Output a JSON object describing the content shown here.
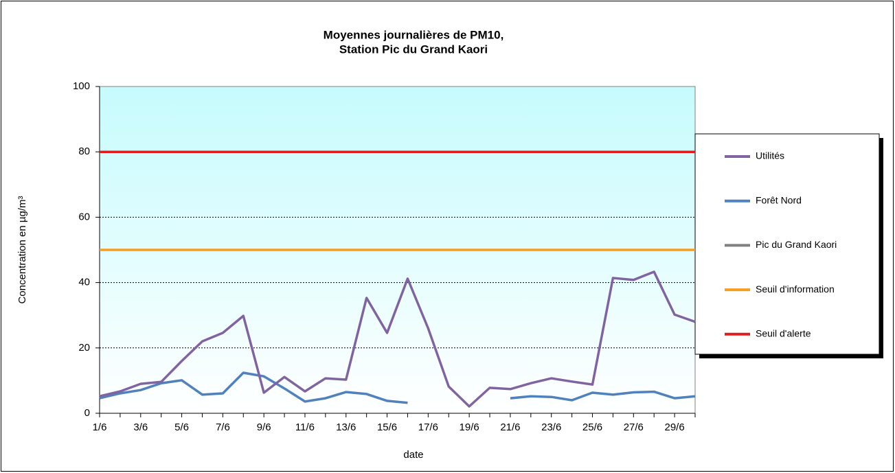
{
  "chart_data": {
    "type": "line",
    "title": "Moyennes journalières de PM10,",
    "subtitle": "Station Pic du Grand Kaori",
    "x_label": "date",
    "y_label": "Concentration en µg/m³",
    "categories": [
      "1/6",
      null,
      "3/6",
      null,
      "5/6",
      null,
      "7/6",
      null,
      "9/6",
      null,
      "11/6",
      null,
      "13/6",
      null,
      "15/6",
      null,
      "17/6",
      null,
      "19/6",
      null,
      "21/6",
      null,
      "23/6",
      null,
      "25/6",
      null,
      "27/6",
      null,
      "29/6",
      null
    ],
    "ylim": [
      0,
      100
    ],
    "yticks": [
      0,
      20,
      40,
      60,
      80,
      100
    ],
    "grid": true,
    "legend": "right",
    "series": [
      {
        "name": "Utilités",
        "color": "#8064a2",
        "values": [
          5.2,
          6.7,
          9,
          9.6,
          16,
          22,
          24.6,
          29.8,
          6.3,
          11.1,
          6.7,
          10.7,
          10.3,
          35.3,
          24.6,
          41.2,
          26,
          8.2,
          2.1,
          7.8,
          7.4,
          9.2,
          10.7,
          9.7,
          8.8,
          41.4,
          40.8,
          43.3,
          30.2,
          28
        ]
      },
      {
        "name": "Forêt Nord",
        "color": "#4f81bd",
        "values": [
          4.6,
          6.1,
          7.1,
          9.2,
          10.1,
          5.7,
          6.1,
          12.4,
          11.3,
          7.6,
          3.6,
          4.6,
          6.5,
          5.9,
          3.8,
          3.2,
          null,
          null,
          null,
          null,
          4.6,
          5.2,
          5.0,
          4.0,
          6.3,
          5.7,
          6.4,
          6.6,
          4.6,
          5.2
        ]
      },
      {
        "name": "Pic du Grand Kaori",
        "color": "#808080",
        "values": [
          null,
          null,
          null,
          null,
          null,
          null,
          null,
          null,
          null,
          null,
          null,
          null,
          null,
          null,
          null,
          null,
          null,
          null,
          null,
          null,
          null,
          null,
          null,
          null,
          null,
          null,
          null,
          null,
          null,
          null
        ]
      },
      {
        "name": "Seuil d'information",
        "color": "#f79c1e",
        "values": [
          50,
          50,
          50,
          50,
          50,
          50,
          50,
          50,
          50,
          50,
          50,
          50,
          50,
          50,
          50,
          50,
          50,
          50,
          50,
          50,
          50,
          50,
          50,
          50,
          50,
          50,
          50,
          50,
          50,
          50
        ]
      },
      {
        "name": "Seuil d'alerte",
        "color": "#e31a1c",
        "values": [
          80,
          80,
          80,
          80,
          80,
          80,
          80,
          80,
          80,
          80,
          80,
          80,
          80,
          80,
          80,
          80,
          80,
          80,
          80,
          80,
          80,
          80,
          80,
          80,
          80,
          80,
          80,
          80,
          80,
          80
        ]
      }
    ]
  }
}
